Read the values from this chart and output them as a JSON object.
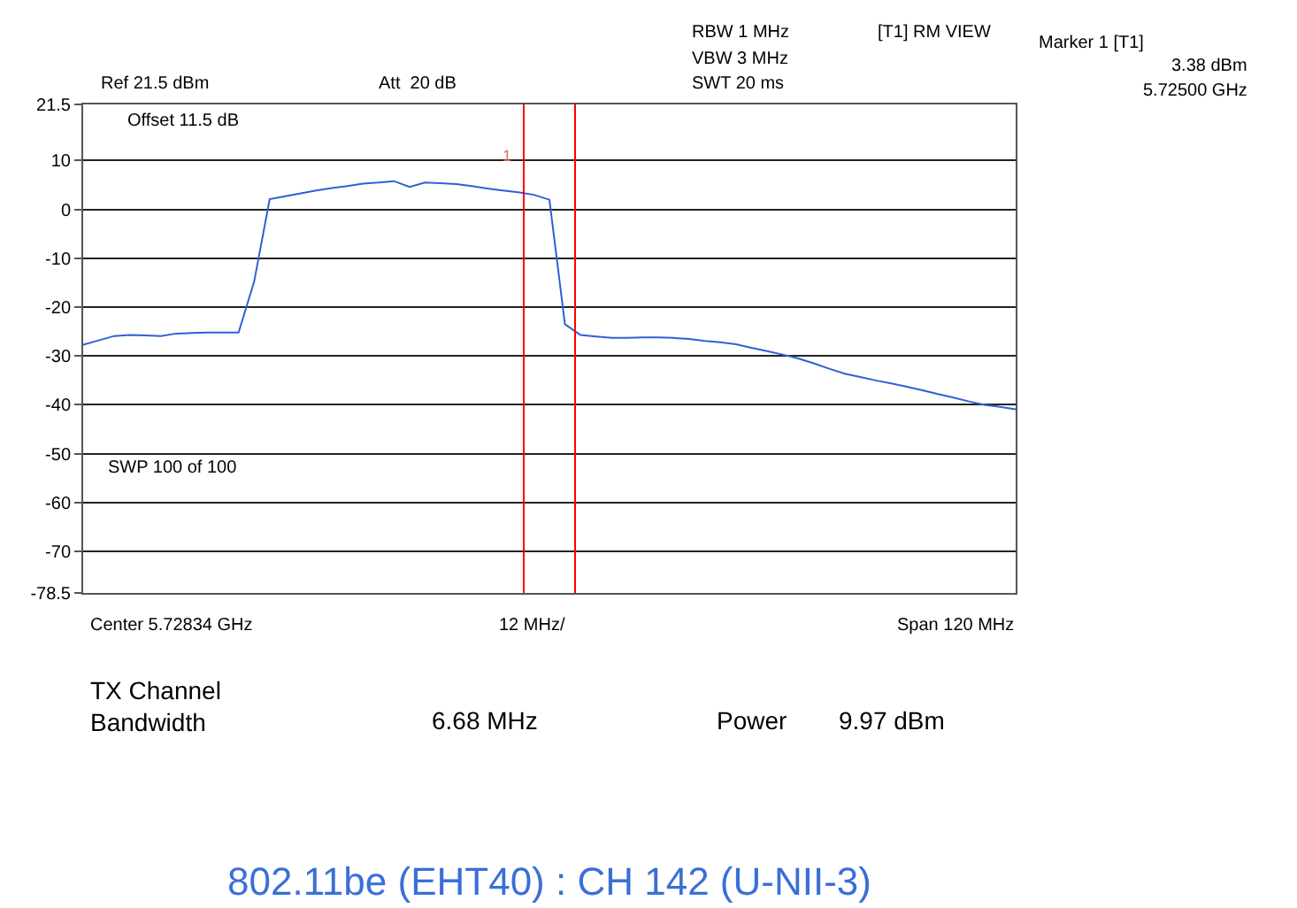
{
  "chart_data": {
    "type": "line",
    "title": "802.11be (EHT40) : CH 142 (U-NII-3)",
    "categories": [
      null,
      null,
      null,
      null,
      null,
      null,
      null,
      null,
      null,
      null,
      null,
      null,
      null,
      null,
      null,
      null,
      null,
      null,
      null,
      null,
      null,
      null,
      null,
      null,
      null,
      null,
      null,
      null,
      null,
      null,
      null,
      null,
      null,
      null,
      null,
      null,
      null,
      null,
      null,
      null,
      null,
      null,
      null,
      null,
      null,
      null,
      null,
      null,
      null,
      null,
      null,
      null,
      null,
      null,
      null,
      null,
      null,
      null,
      null,
      null,
      null
    ],
    "series": [
      {
        "color": "#2f5fd8",
        "values": [
          -27.7,
          -26.8,
          -25.9,
          -25.7,
          -25.8,
          -25.9,
          -25.4,
          -25.3,
          -25.2,
          -25.2,
          -25.2,
          -14.8,
          2.1,
          2.7,
          3.3,
          3.9,
          4.4,
          4.8,
          5.3,
          5.5,
          5.8,
          4.6,
          5.5,
          5.4,
          5.2,
          4.8,
          4.3,
          3.9,
          3.5,
          3.0,
          2.0,
          -23.5,
          -25.7,
          -26.0,
          -26.3,
          -26.3,
          -26.2,
          -26.2,
          -26.3,
          -26.5,
          -26.9,
          -27.2,
          -27.6,
          -28.3,
          -29.0,
          -29.7,
          -30.5,
          -31.5,
          -32.6,
          -33.6,
          -34.3,
          -35.0,
          -35.6,
          -36.3,
          -37.0,
          -37.8,
          -38.5,
          -39.3,
          -40.0,
          -40.4,
          -40.9
        ]
      }
    ],
    "ylim": [
      -78.5,
      21.5
    ],
    "yticks": [
      -78.5,
      -70,
      -60,
      -50,
      -40,
      -30,
      -20,
      -10,
      0,
      10,
      21.5
    ],
    "tick_labels": "y",
    "grid": "y",
    "marker": "none",
    "line_style": "solid",
    "annotations": [
      "Ref 21.5 dBm",
      "Att  20 dB",
      "RBW 1 MHz",
      "VBW 3 MHz",
      "SWT 20 ms",
      "[T1] RM VIEW",
      "Marker 1 [T1]",
      "3.38 dBm",
      "5.72500 GHz",
      "Offset 11.5 dB",
      "SWP 100 of 100",
      "Center 5.72834 GHz",
      "12 MHz/",
      "Span 120 MHz",
      "TX Channel\nBandwidth",
      "6.68 MHz",
      "Power",
      "9.97 dBm",
      "1"
    ]
  }
}
